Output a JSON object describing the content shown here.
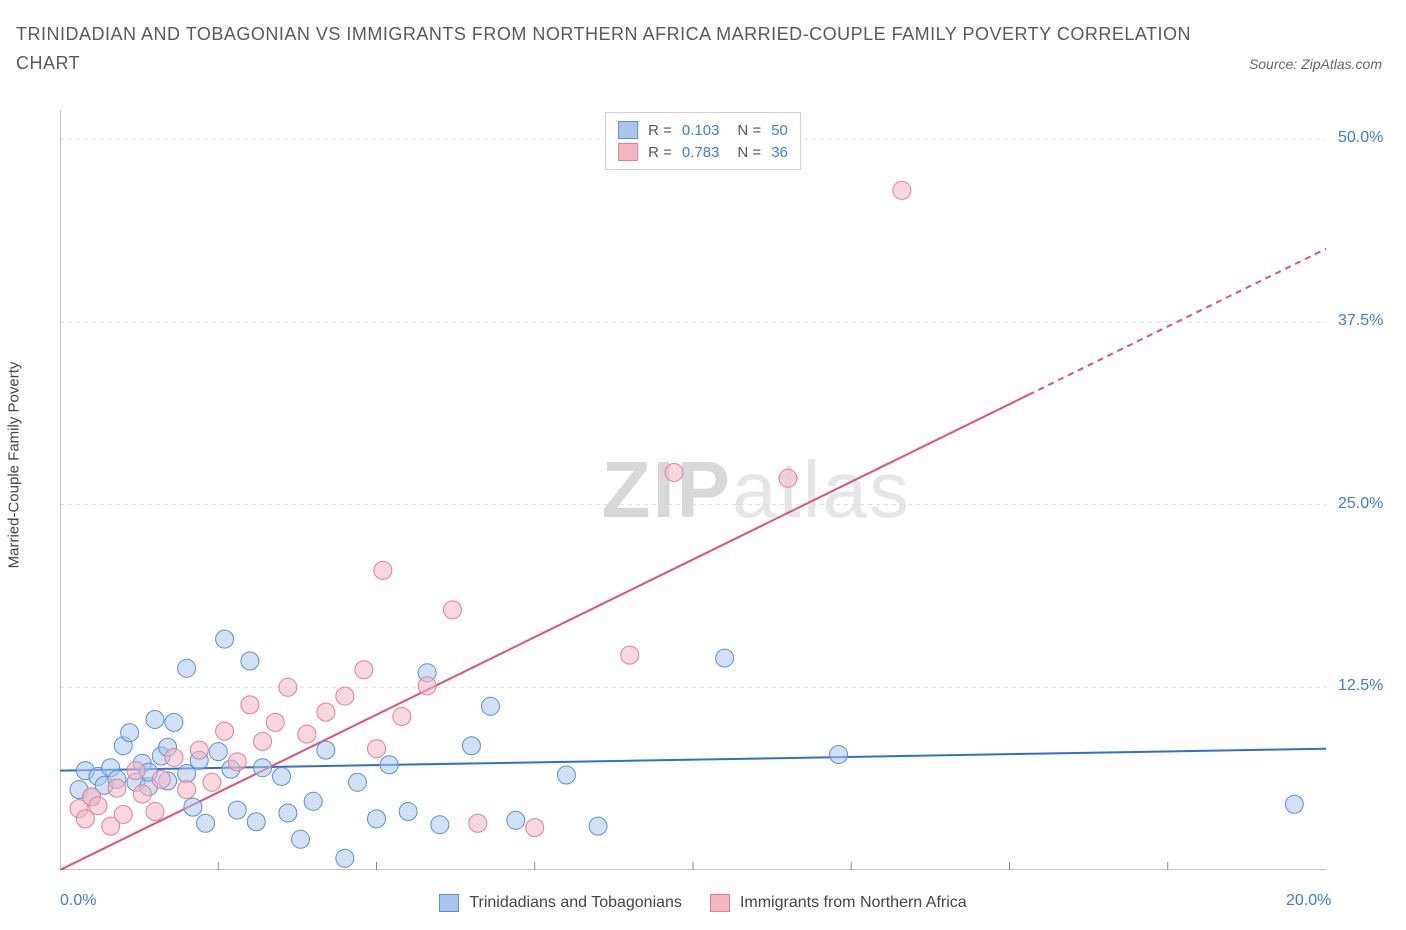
{
  "title": "TRINIDADIAN AND TOBAGONIAN VS IMMIGRANTS FROM NORTHERN AFRICA MARRIED-COUPLE FAMILY POVERTY CORRELATION CHART",
  "source": "Source: ZipAtlas.com",
  "ylabel": "Married-Couple Family Poverty",
  "watermark_a": "ZIP",
  "watermark_b": "atlas",
  "chart": {
    "type": "scatter",
    "xlim": [
      0,
      20
    ],
    "ylim": [
      0,
      52
    ],
    "xtick_labels": [
      {
        "v": 0,
        "t": "0.0%"
      },
      {
        "v": 20,
        "t": "20.0%"
      }
    ],
    "xtick_marks": [
      2.5,
      5,
      7.5,
      10,
      12.5,
      15,
      17.5
    ],
    "ytick_labels": [
      {
        "v": 12.5,
        "t": "12.5%"
      },
      {
        "v": 25.0,
        "t": "25.0%"
      },
      {
        "v": 37.5,
        "t": "37.5%"
      },
      {
        "v": 50.0,
        "t": "50.0%"
      }
    ],
    "grid_y": [
      12.5,
      25,
      37.5,
      50
    ],
    "grid_color": "#dddddd",
    "axis_color": "#888888",
    "background": "#ffffff",
    "marker_radius": 9,
    "marker_stroke_width": 1,
    "series": [
      {
        "name": "Trinidadians and Tobagonians",
        "fill": "#a9c6ec",
        "stroke": "#5a8fd6",
        "fill_opacity": 0.55,
        "R": "0.103",
        "N": "50",
        "regression": {
          "x1": 0,
          "y1": 6.8,
          "x2": 20,
          "y2": 8.3,
          "color": "#2f6fd0",
          "width": 2
        },
        "points": [
          [
            0.3,
            5.5
          ],
          [
            0.4,
            6.8
          ],
          [
            0.5,
            5.0
          ],
          [
            0.6,
            6.4
          ],
          [
            0.7,
            5.8
          ],
          [
            0.8,
            7.0
          ],
          [
            0.9,
            6.2
          ],
          [
            1.0,
            8.5
          ],
          [
            1.1,
            9.4
          ],
          [
            1.2,
            6.0
          ],
          [
            1.3,
            7.3
          ],
          [
            1.4,
            5.7
          ],
          [
            1.5,
            10.3
          ],
          [
            1.6,
            7.8
          ],
          [
            1.7,
            6.1
          ],
          [
            1.7,
            8.4
          ],
          [
            1.8,
            10.1
          ],
          [
            2.0,
            6.6
          ],
          [
            2.1,
            4.3
          ],
          [
            2.2,
            7.5
          ],
          [
            2.3,
            3.2
          ],
          [
            2.5,
            8.1
          ],
          [
            2.6,
            15.8
          ],
          [
            2.7,
            6.9
          ],
          [
            2.8,
            4.1
          ],
          [
            3.0,
            14.3
          ],
          [
            3.1,
            3.3
          ],
          [
            3.2,
            7.0
          ],
          [
            3.5,
            6.4
          ],
          [
            3.6,
            3.9
          ],
          [
            3.8,
            2.1
          ],
          [
            4.0,
            4.7
          ],
          [
            4.2,
            8.2
          ],
          [
            4.5,
            0.8
          ],
          [
            4.7,
            6.0
          ],
          [
            5.0,
            3.5
          ],
          [
            5.2,
            7.2
          ],
          [
            5.5,
            4.0
          ],
          [
            5.8,
            13.5
          ],
          [
            6.0,
            3.1
          ],
          [
            6.5,
            8.5
          ],
          [
            6.8,
            11.2
          ],
          [
            7.2,
            3.4
          ],
          [
            8.0,
            6.5
          ],
          [
            8.5,
            3.0
          ],
          [
            10.5,
            14.5
          ],
          [
            12.3,
            7.9
          ],
          [
            19.5,
            4.5
          ],
          [
            2.0,
            13.8
          ],
          [
            1.4,
            6.7
          ]
        ]
      },
      {
        "name": "Immigrants from Northern Africa",
        "fill": "#f3b7c3",
        "stroke": "#e87d96",
        "fill_opacity": 0.55,
        "R": "0.783",
        "N": "36",
        "regression": {
          "x1": 0,
          "y1": 0,
          "x2": 20,
          "y2": 42.5,
          "color": "#e54f76",
          "width": 2,
          "solid_until_x": 15.3
        },
        "points": [
          [
            0.3,
            4.2
          ],
          [
            0.4,
            3.5
          ],
          [
            0.5,
            5.0
          ],
          [
            0.6,
            4.4
          ],
          [
            0.8,
            3.0
          ],
          [
            0.9,
            5.6
          ],
          [
            1.0,
            3.8
          ],
          [
            1.2,
            6.8
          ],
          [
            1.3,
            5.2
          ],
          [
            1.5,
            4.0
          ],
          [
            1.6,
            6.2
          ],
          [
            1.8,
            7.7
          ],
          [
            2.0,
            5.5
          ],
          [
            2.2,
            8.2
          ],
          [
            2.4,
            6.0
          ],
          [
            2.6,
            9.5
          ],
          [
            2.8,
            7.4
          ],
          [
            3.0,
            11.3
          ],
          [
            3.2,
            8.8
          ],
          [
            3.4,
            10.1
          ],
          [
            3.6,
            12.5
          ],
          [
            3.9,
            9.3
          ],
          [
            4.2,
            10.8
          ],
          [
            4.5,
            11.9
          ],
          [
            4.8,
            13.7
          ],
          [
            5.1,
            20.5
          ],
          [
            5.4,
            10.5
          ],
          [
            5.8,
            12.6
          ],
          [
            6.2,
            17.8
          ],
          [
            6.6,
            3.2
          ],
          [
            7.5,
            2.9
          ],
          [
            9.0,
            14.7
          ],
          [
            9.7,
            27.2
          ],
          [
            11.5,
            26.8
          ],
          [
            13.3,
            46.5
          ],
          [
            5.0,
            8.3
          ]
        ]
      }
    ],
    "legend_bottom": [
      {
        "label": "Trinidadians and Tobagonians",
        "fill": "#a9c6ec",
        "stroke": "#5a8fd6"
      },
      {
        "label": "Immigrants from Northern Africa",
        "fill": "#f3b7c3",
        "stroke": "#e87d96"
      }
    ]
  }
}
